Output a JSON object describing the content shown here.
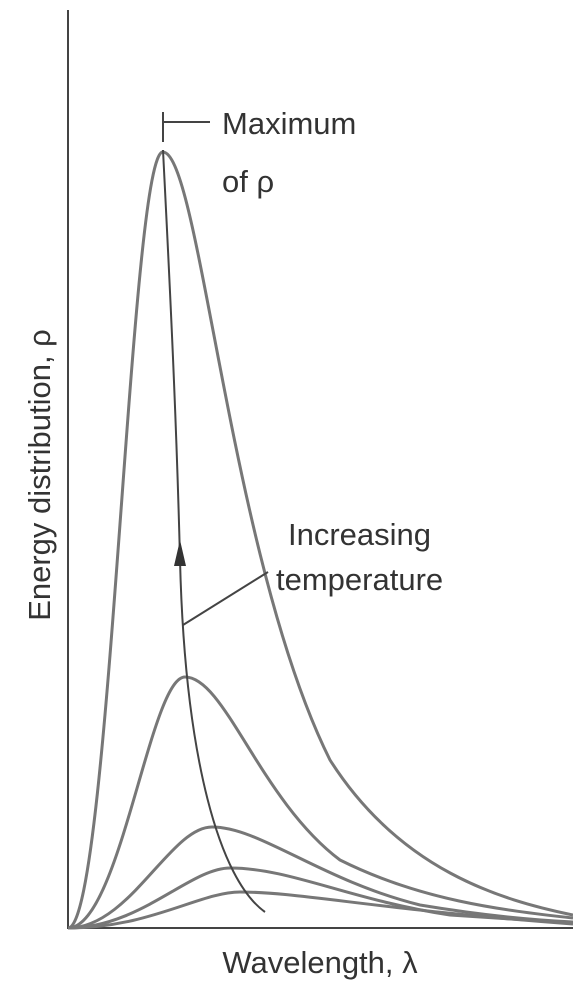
{
  "annotations": {
    "maximum": [
      "Maximum",
      "of ρ"
    ],
    "temperature": [
      "Increasing",
      "temperature"
    ]
  },
  "axes": {
    "y_label": "Energy distribution, ρ",
    "x_label": "Wavelength, λ"
  }
}
